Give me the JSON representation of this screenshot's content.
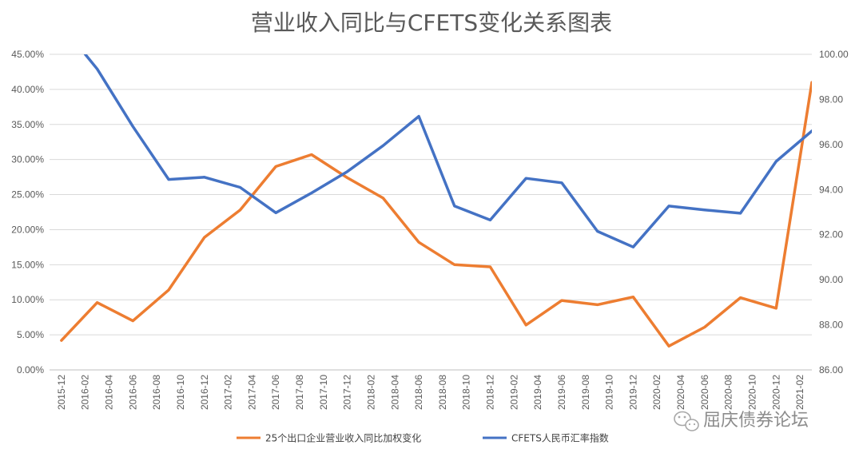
{
  "chart_data": {
    "type": "line",
    "title": "营业收入同比与CFETS变化关系图表",
    "x": [
      "2015-12",
      "2016-02",
      "2016-04",
      "2016-06",
      "2016-08",
      "2016-10",
      "2016-12",
      "2017-02",
      "2017-04",
      "2017-06",
      "2017-08",
      "2017-10",
      "2017-12",
      "2018-02",
      "2018-04",
      "2018-06",
      "2018-08",
      "2018-10",
      "2018-12",
      "2019-02",
      "2019-04",
      "2019-06",
      "2019-08",
      "2019-10",
      "2019-12",
      "2020-02",
      "2020-04",
      "2020-06",
      "2020-08",
      "2020-10",
      "2020-12",
      "2021-02"
    ],
    "y_left": {
      "ticks": [
        "0.00%",
        "5.00%",
        "10.00%",
        "15.00%",
        "20.00%",
        "25.00%",
        "30.00%",
        "35.00%",
        "40.00%",
        "45.00%"
      ],
      "lim": [
        0,
        45
      ]
    },
    "y_right": {
      "ticks": [
        "86.00",
        "88.00",
        "90.00",
        "92.00",
        "94.00",
        "96.00",
        "98.00",
        "100.00"
      ],
      "lim": [
        86,
        100
      ]
    },
    "series": [
      {
        "name": "25个出口企业营业收入同比加权变化",
        "axis": "left",
        "color": "#ED7D31",
        "points": [
          {
            "x": 0,
            "y": 4.2
          },
          {
            "x": 1.5,
            "y": 9.6
          },
          {
            "x": 3,
            "y": 7.0
          },
          {
            "x": 4.5,
            "y": 11.4
          },
          {
            "x": 6,
            "y": 18.9
          },
          {
            "x": 7.5,
            "y": 22.8
          },
          {
            "x": 9,
            "y": 29.0
          },
          {
            "x": 10.5,
            "y": 30.7
          },
          {
            "x": 12,
            "y": 27.4
          },
          {
            "x": 13.5,
            "y": 24.5
          },
          {
            "x": 15,
            "y": 18.2
          },
          {
            "x": 16.5,
            "y": 15.0
          },
          {
            "x": 18,
            "y": 14.7
          },
          {
            "x": 19.5,
            "y": 6.4
          },
          {
            "x": 21,
            "y": 9.9
          },
          {
            "x": 22.5,
            "y": 9.3
          },
          {
            "x": 24,
            "y": 10.4
          },
          {
            "x": 25.5,
            "y": 3.4
          },
          {
            "x": 27,
            "y": 6.1
          },
          {
            "x": 28.5,
            "y": 10.3
          },
          {
            "x": 30,
            "y": 8.8
          },
          {
            "x": 31.5,
            "y": 41.0
          }
        ]
      },
      {
        "name": "CFETS人民币汇率指数",
        "axis": "right",
        "color": "#4472C4",
        "points": [
          {
            "x": 1,
            "y": 100.0
          },
          {
            "x": 1.5,
            "y": 99.35
          },
          {
            "x": 3,
            "y": 96.8
          },
          {
            "x": 4.5,
            "y": 94.45
          },
          {
            "x": 6,
            "y": 94.55
          },
          {
            "x": 7.5,
            "y": 94.1
          },
          {
            "x": 9,
            "y": 92.97
          },
          {
            "x": 10.5,
            "y": 93.85
          },
          {
            "x": 12,
            "y": 94.8
          },
          {
            "x": 13.5,
            "y": 95.95
          },
          {
            "x": 15,
            "y": 97.25
          },
          {
            "x": 16.5,
            "y": 93.27
          },
          {
            "x": 18,
            "y": 92.65
          },
          {
            "x": 19.5,
            "y": 94.5
          },
          {
            "x": 21,
            "y": 94.3
          },
          {
            "x": 22.5,
            "y": 92.15
          },
          {
            "x": 24,
            "y": 91.45
          },
          {
            "x": 25.5,
            "y": 93.27
          },
          {
            "x": 27,
            "y": 93.1
          },
          {
            "x": 28.5,
            "y": 92.95
          },
          {
            "x": 30,
            "y": 95.25
          },
          {
            "x": 31.5,
            "y": 96.6
          }
        ]
      }
    ],
    "grid": true,
    "legend": "bottom-center"
  },
  "watermark": {
    "icon": "wechat-icon",
    "text": "屈庆债券论坛"
  }
}
